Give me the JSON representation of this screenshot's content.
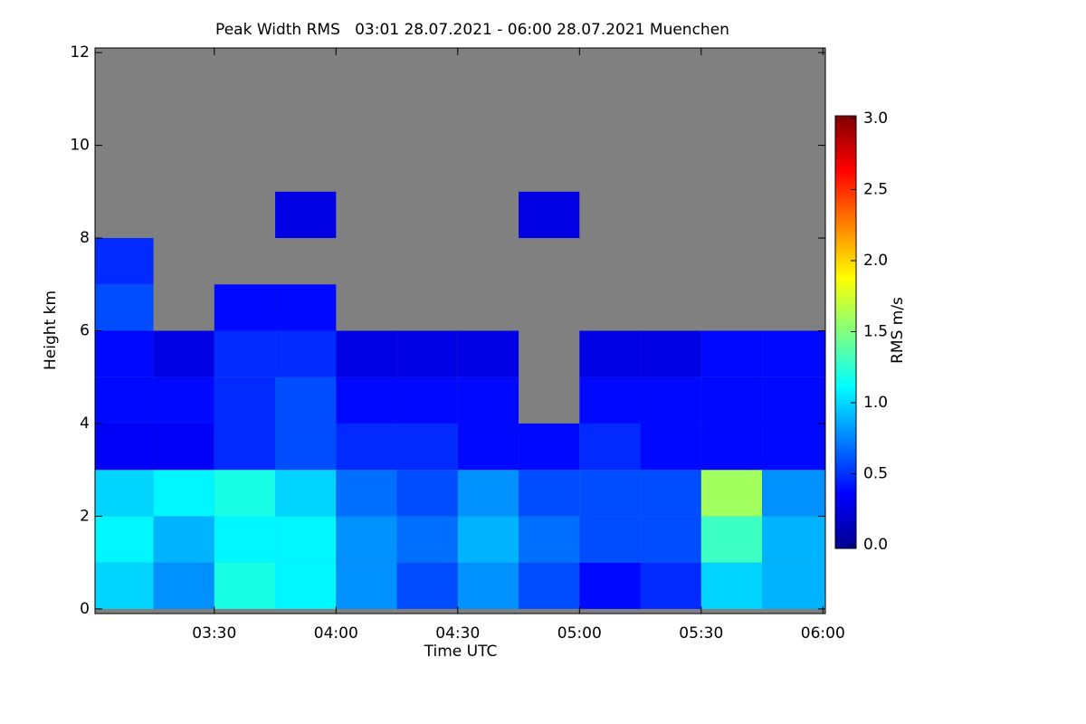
{
  "chart_data": {
    "type": "heatmap",
    "title": "Peak Width RMS   03:01 28.07.2021 - 06:00 28.07.2021 Muenchen",
    "x_label": "Time UTC",
    "y_label": "Height km",
    "colorbar_label": "RMS m/s",
    "colormap": "jet",
    "xlim": [
      3.01,
      6.01
    ],
    "ylim": [
      -0.1,
      12.1
    ],
    "xticks": [
      {
        "value": 3.5,
        "label": "03:30"
      },
      {
        "value": 4.0,
        "label": "04:00"
      },
      {
        "value": 4.5,
        "label": "04:30"
      },
      {
        "value": 5.0,
        "label": "05:00"
      },
      {
        "value": 5.5,
        "label": "05:30"
      },
      {
        "value": 6.0,
        "label": "06:00"
      }
    ],
    "yticks": [
      0,
      2,
      4,
      6,
      8,
      10,
      12
    ],
    "clim": [
      0,
      3
    ],
    "cticks": [
      {
        "value": 0,
        "label": "0.0"
      },
      {
        "value": 0.5,
        "label": "0.5"
      },
      {
        "value": 1,
        "label": "1.0"
      },
      {
        "value": 1.5,
        "label": "1.5"
      },
      {
        "value": 2,
        "label": "2.0"
      },
      {
        "value": 2.5,
        "label": "2.5"
      },
      {
        "value": 3,
        "label": "3.0"
      }
    ],
    "xbins": [
      3.01,
      3.25,
      3.5,
      3.75,
      4.0,
      4.25,
      4.5,
      4.75,
      5.0,
      5.25,
      5.5,
      5.75,
      6.01
    ],
    "ybins": [
      0,
      1,
      2,
      3,
      4,
      5,
      6,
      7,
      8,
      9,
      10,
      11,
      12
    ],
    "z": [
      [
        1.0,
        0.8,
        1.2,
        1.1,
        0.8,
        0.6,
        0.8,
        0.6,
        0.4,
        0.5,
        1.0,
        0.9
      ],
      [
        1.1,
        0.9,
        1.1,
        1.1,
        0.8,
        0.7,
        0.9,
        0.7,
        0.6,
        0.6,
        1.3,
        0.9
      ],
      [
        1.0,
        1.1,
        1.2,
        1.0,
        0.7,
        0.6,
        0.8,
        0.6,
        0.6,
        0.6,
        1.6,
        0.8
      ],
      [
        0.35,
        0.35,
        0.5,
        0.6,
        0.5,
        0.5,
        0.4,
        0.4,
        0.5,
        0.4,
        0.4,
        0.4
      ],
      [
        0.4,
        0.4,
        0.5,
        0.6,
        0.4,
        0.4,
        0.4,
        null,
        0.4,
        0.4,
        0.4,
        0.4
      ],
      [
        0.4,
        0.3,
        0.5,
        0.5,
        0.3,
        0.3,
        0.3,
        null,
        0.3,
        0.3,
        0.4,
        0.4
      ],
      [
        0.6,
        null,
        0.4,
        0.4,
        null,
        null,
        null,
        null,
        null,
        null,
        null,
        null
      ],
      [
        0.5,
        null,
        null,
        null,
        null,
        null,
        null,
        null,
        null,
        null,
        null,
        null
      ],
      [
        null,
        null,
        null,
        0.3,
        null,
        null,
        null,
        0.3,
        null,
        null,
        null,
        null
      ],
      [
        null,
        null,
        null,
        null,
        null,
        null,
        null,
        null,
        null,
        null,
        null,
        null
      ],
      [
        null,
        null,
        null,
        null,
        null,
        null,
        null,
        null,
        null,
        null,
        null,
        null
      ],
      [
        null,
        null,
        null,
        null,
        null,
        null,
        null,
        null,
        null,
        null,
        null,
        null
      ]
    ]
  }
}
